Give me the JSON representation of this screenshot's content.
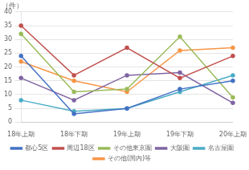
{
  "chart_data": {
    "type": "line",
    "ylabel": "（件）",
    "categories": [
      "18年上期",
      "18年下期",
      "19年上期",
      "19年下期",
      "20年上期"
    ],
    "series": [
      {
        "name": "都心5区",
        "color": "#4472c4",
        "values": [
          24,
          3,
          5,
          12,
          15
        ]
      },
      {
        "name": "周辺18区",
        "color": "#c0504d",
        "values": [
          35,
          17,
          27,
          16,
          24
        ]
      },
      {
        "name": "その他東京圏",
        "color": "#9bbb59",
        "values": [
          32,
          11,
          12,
          31,
          9
        ]
      },
      {
        "name": "大阪圏",
        "color": "#8064a2",
        "values": [
          16,
          8,
          17,
          18,
          7
        ]
      },
      {
        "name": "名古屋圏",
        "color": "#4bacc6",
        "values": [
          8,
          4,
          5,
          11,
          17
        ]
      },
      {
        "name": "その他(国内)等",
        "color": "#f79646",
        "values": [
          22,
          15,
          11,
          26,
          27
        ]
      }
    ],
    "ylim": [
      0,
      40
    ],
    "yticks": [
      0,
      5,
      10,
      15,
      20,
      25,
      30,
      35,
      40
    ],
    "grid": true,
    "marker": "circle",
    "legend": "bottom"
  }
}
